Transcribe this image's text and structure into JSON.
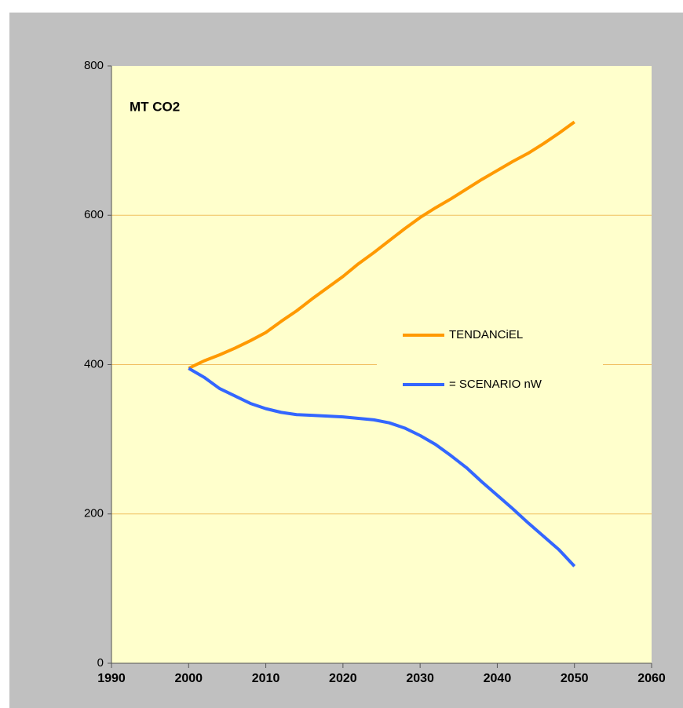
{
  "chart_data": {
    "type": "line",
    "title": "MT  CO2",
    "x": [
      2000,
      2002,
      2004,
      2006,
      2008,
      2010,
      2012,
      2014,
      2016,
      2018,
      2020,
      2022,
      2024,
      2026,
      2028,
      2030,
      2032,
      2034,
      2036,
      2038,
      2040,
      2042,
      2044,
      2046,
      2048,
      2050
    ],
    "series": [
      {
        "name": "TENDANCiEL",
        "color": "#ff9900",
        "values": [
          395,
          405,
          413,
          422,
          432,
          443,
          458,
          472,
          488,
          503,
          518,
          535,
          550,
          566,
          582,
          597,
          610,
          622,
          635,
          648,
          660,
          672,
          683,
          696,
          710,
          725
        ]
      },
      {
        "name": "= SCENARIO nW",
        "color": "#3366ff",
        "values": [
          395,
          383,
          368,
          358,
          348,
          341,
          336,
          333,
          332,
          331,
          330,
          328,
          326,
          322,
          315,
          305,
          293,
          278,
          262,
          243,
          225,
          207,
          188,
          170,
          152,
          130
        ]
      }
    ],
    "xlim": [
      1990,
      2060
    ],
    "xticks": [
      1990,
      2000,
      2010,
      2020,
      2030,
      2040,
      2050,
      2060
    ],
    "ylim": [
      0,
      800
    ],
    "yticks": [
      0,
      200,
      400,
      600,
      800
    ],
    "grid": true
  }
}
